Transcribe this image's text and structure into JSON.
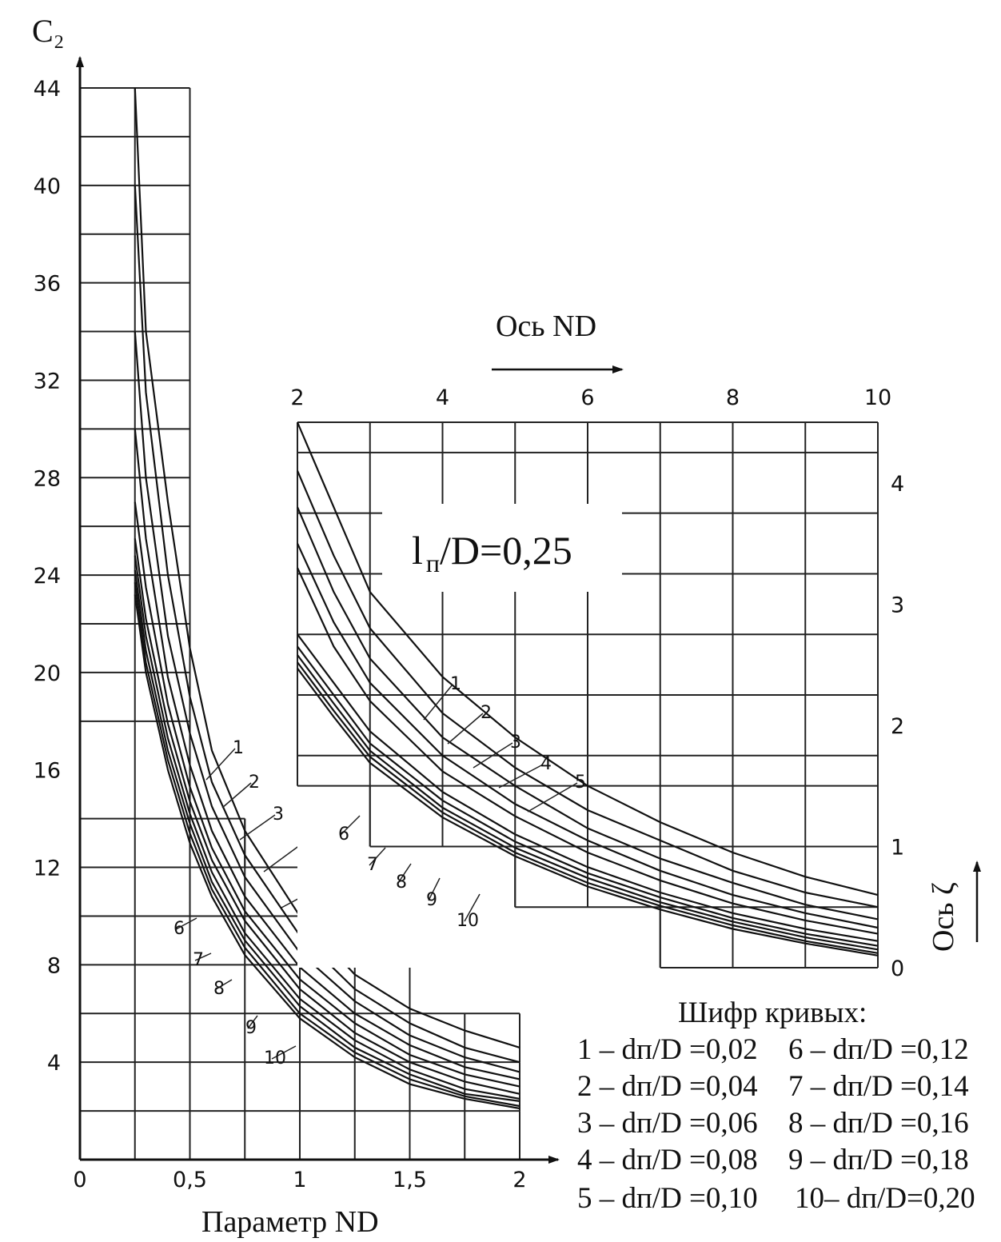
{
  "chart_data": [
    {
      "type": "line",
      "title": "",
      "y_axis_label": "C₂",
      "xlabel": "Параметр ND",
      "xlim": [
        0,
        2
      ],
      "ylim": [
        0,
        44
      ],
      "x_ticks": [
        "0",
        "0,5",
        "1",
        "1,5",
        "2"
      ],
      "y_ticks": [
        "4",
        "8",
        "12",
        "16",
        "20",
        "24",
        "28",
        "32",
        "36",
        "40",
        "44"
      ],
      "series": [
        {
          "name": "1",
          "x": [
            0.25,
            0.3,
            0.4,
            0.5,
            0.6,
            0.75,
            1.0,
            1.25,
            1.5,
            1.75,
            2.0
          ],
          "y": [
            44.0,
            34.0,
            27.0,
            21.0,
            16.8,
            13.5,
            10.0,
            7.6,
            6.2,
            5.3,
            4.6
          ]
        },
        {
          "name": "2",
          "x": [
            0.25,
            0.3,
            0.4,
            0.5,
            0.6,
            0.75,
            1.0,
            1.25,
            1.5,
            1.75,
            2.0
          ],
          "y": [
            40.0,
            31.5,
            24.0,
            19.0,
            15.5,
            12.5,
            9.2,
            7.0,
            5.6,
            4.6,
            4.0
          ]
        },
        {
          "name": "3",
          "x": [
            0.25,
            0.3,
            0.4,
            0.5,
            0.6,
            0.75,
            1.0,
            1.25,
            1.5,
            1.75,
            2.0
          ],
          "y": [
            34.0,
            28.0,
            21.5,
            17.5,
            14.5,
            11.6,
            8.5,
            6.5,
            5.1,
            4.2,
            3.6
          ]
        },
        {
          "name": "4",
          "x": [
            0.25,
            0.3,
            0.4,
            0.5,
            0.6,
            0.75,
            1.0,
            1.25,
            1.5,
            1.75,
            2.0
          ],
          "y": [
            30.0,
            25.5,
            19.8,
            16.2,
            13.5,
            10.8,
            7.9,
            6.0,
            4.7,
            3.8,
            3.3
          ]
        },
        {
          "name": "5",
          "x": [
            0.25,
            0.3,
            0.4,
            0.5,
            0.6,
            0.75,
            1.0,
            1.25,
            1.5,
            1.75,
            2.0
          ],
          "y": [
            27.0,
            23.5,
            18.7,
            15.3,
            12.8,
            10.2,
            7.4,
            5.6,
            4.3,
            3.5,
            3.0
          ]
        },
        {
          "name": "6",
          "x": [
            0.25,
            0.3,
            0.4,
            0.5,
            0.6,
            0.75,
            1.0,
            1.25,
            1.5,
            1.75,
            2.0
          ],
          "y": [
            25.5,
            22.2,
            17.9,
            14.7,
            12.3,
            9.8,
            7.0,
            5.2,
            4.0,
            3.2,
            2.7
          ]
        },
        {
          "name": "7",
          "x": [
            0.25,
            0.3,
            0.4,
            0.5,
            0.6,
            0.75,
            1.0,
            1.25,
            1.5,
            1.75,
            2.0
          ],
          "y": [
            24.8,
            21.5,
            17.3,
            14.2,
            11.8,
            9.3,
            6.6,
            4.9,
            3.7,
            2.9,
            2.5
          ]
        },
        {
          "name": "8",
          "x": [
            0.25,
            0.3,
            0.4,
            0.5,
            0.6,
            0.75,
            1.0,
            1.25,
            1.5,
            1.75,
            2.0
          ],
          "y": [
            24.2,
            20.9,
            16.8,
            13.8,
            11.4,
            9.0,
            6.3,
            4.6,
            3.5,
            2.7,
            2.4
          ]
        },
        {
          "name": "9",
          "x": [
            0.25,
            0.3,
            0.4,
            0.5,
            0.6,
            0.75,
            1.0,
            1.25,
            1.5,
            1.75,
            2.0
          ],
          "y": [
            23.7,
            20.4,
            16.4,
            13.4,
            11.1,
            8.7,
            6.0,
            4.4,
            3.3,
            2.6,
            2.2
          ]
        },
        {
          "name": "10",
          "x": [
            0.25,
            0.3,
            0.4,
            0.5,
            0.6,
            0.75,
            1.0,
            1.25,
            1.5,
            1.75,
            2.0
          ],
          "y": [
            23.2,
            20.0,
            16.0,
            13.0,
            10.8,
            8.4,
            5.8,
            4.2,
            3.1,
            2.5,
            2.1
          ]
        }
      ]
    },
    {
      "type": "line",
      "title": "",
      "inset_label_main": "l",
      "inset_label_sub": "п",
      "inset_label_rest": "/D=0,25",
      "xlabel": "Ось ND",
      "ylabel": "Ось ζ",
      "xlim": [
        2,
        10
      ],
      "ylim": [
        0,
        4.5
      ],
      "x_ticks": [
        "2",
        "4",
        "6",
        "8",
        "10"
      ],
      "y_ticks": [
        "0",
        "1",
        "2",
        "3",
        "4"
      ],
      "series": [
        {
          "name": "1",
          "x": [
            2.0,
            2.5,
            3,
            4,
            5,
            6,
            7,
            8,
            9,
            10
          ],
          "y": [
            4.5,
            3.8,
            3.1,
            2.4,
            1.9,
            1.5,
            1.2,
            0.95,
            0.75,
            0.6
          ]
        },
        {
          "name": "2",
          "x": [
            2.0,
            2.5,
            3,
            4,
            5,
            6,
            7,
            8,
            9,
            10
          ],
          "y": [
            4.1,
            3.4,
            2.8,
            2.1,
            1.65,
            1.3,
            1.05,
            0.8,
            0.62,
            0.5
          ]
        },
        {
          "name": "3",
          "x": [
            2.0,
            2.5,
            3,
            4,
            5,
            6,
            7,
            8,
            9,
            10
          ],
          "y": [
            3.8,
            3.1,
            2.55,
            1.9,
            1.5,
            1.15,
            0.9,
            0.7,
            0.52,
            0.4
          ]
        },
        {
          "name": "4",
          "x": [
            2.0,
            2.5,
            3,
            4,
            5,
            6,
            7,
            8,
            9,
            10
          ],
          "y": [
            3.5,
            2.85,
            2.35,
            1.75,
            1.35,
            1.05,
            0.8,
            0.6,
            0.45,
            0.33
          ]
        },
        {
          "name": "5",
          "x": [
            2.0,
            2.5,
            3,
            4,
            5,
            6,
            7,
            8,
            9,
            10
          ],
          "y": [
            3.3,
            2.65,
            2.2,
            1.62,
            1.25,
            0.95,
            0.72,
            0.53,
            0.39,
            0.28
          ]
        },
        {
          "name": "6",
          "x": [
            2.0,
            2.5,
            3,
            4,
            5,
            6,
            7,
            8,
            9,
            10
          ],
          "y": [
            2.75,
            2.35,
            1.95,
            1.45,
            1.1,
            0.83,
            0.62,
            0.45,
            0.32,
            0.22
          ]
        },
        {
          "name": "7",
          "x": [
            2.0,
            2.5,
            3,
            4,
            5,
            6,
            7,
            8,
            9,
            10
          ],
          "y": [
            2.65,
            2.25,
            1.85,
            1.38,
            1.04,
            0.78,
            0.58,
            0.41,
            0.28,
            0.18
          ]
        },
        {
          "name": "8",
          "x": [
            2.0,
            2.5,
            3,
            4,
            5,
            6,
            7,
            8,
            9,
            10
          ],
          "y": [
            2.58,
            2.18,
            1.79,
            1.32,
            0.99,
            0.74,
            0.54,
            0.38,
            0.25,
            0.15
          ]
        },
        {
          "name": "9",
          "x": [
            2.0,
            2.5,
            3,
            4,
            5,
            6,
            7,
            8,
            9,
            10
          ],
          "y": [
            2.52,
            2.12,
            1.74,
            1.28,
            0.95,
            0.7,
            0.51,
            0.35,
            0.22,
            0.12
          ]
        },
        {
          "name": "10",
          "x": [
            2.0,
            2.5,
            3,
            4,
            5,
            6,
            7,
            8,
            9,
            10
          ],
          "y": [
            2.47,
            2.07,
            1.69,
            1.24,
            0.92,
            0.67,
            0.48,
            0.32,
            0.2,
            0.1
          ]
        }
      ]
    }
  ],
  "legend": {
    "title": "Шифр кривых:",
    "rows": [
      {
        "left": "1 – dп/D =0,02",
        "right": "6 – dп/D =0,12"
      },
      {
        "left": "2 – dп/D =0,04",
        "right": "7 – dп/D =0,14"
      },
      {
        "left": "3 – dп/D =0,06",
        "right": "8 – dп/D =0,16"
      },
      {
        "left": "4 – dп/D =0,08",
        "right": "9 – dп/D =0,18"
      },
      {
        "left": "5 – dп/D =0,10",
        "right": "10– dп/D=0,20"
      }
    ]
  }
}
